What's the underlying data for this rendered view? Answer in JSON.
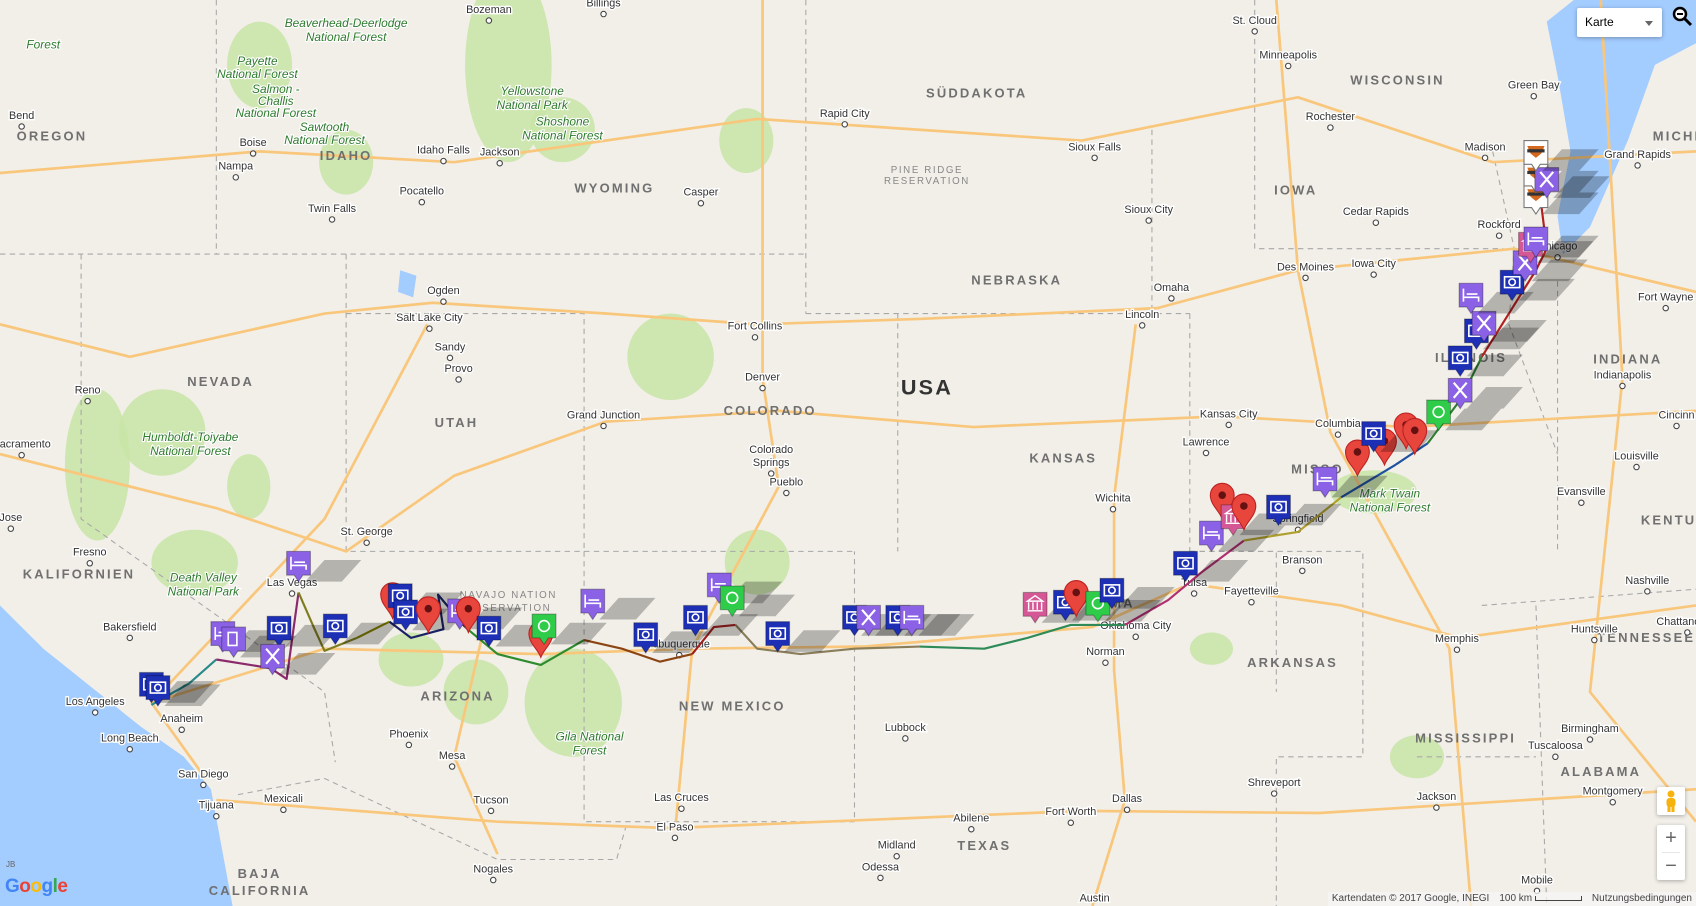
{
  "map_type_control": {
    "selected": "Karte"
  },
  "country_label": "USA",
  "state_labels": [
    "OREGON",
    "IDAHO",
    "WYOMING",
    "SÜDDAKOTA",
    "NEBRASKA",
    "NEVADA",
    "UTAH",
    "COLORADO",
    "KANSAS",
    "IOWA",
    "WISCONSIN",
    "ILLINOIS",
    "INDIANA",
    "MICHI",
    "MISSO",
    "KALIFORNIEN",
    "ARIZONA",
    "NEW MEXICO",
    "TEXAS",
    "ARKANSAS",
    "MISSISSIPPI",
    "TENNESSEE",
    "ALABAMA",
    "KENTUC",
    "BAJA",
    "CALIFORNIA",
    "OMA"
  ],
  "city_labels": [
    "Bozeman",
    "Billings",
    "St. Cloud",
    "Minneapolis",
    "Green Bay",
    "Bend",
    "Boise",
    "Nampa",
    "Idaho Falls",
    "Jackson",
    "Pocatello",
    "Twin Falls",
    "Rapid City",
    "Casper",
    "Sioux Falls",
    "Rochester",
    "Madison",
    "Grand Rapids",
    "Rockford",
    "Sioux City",
    "Cedar Rapids",
    "Des Moines",
    "Iowa City",
    "Chicago",
    "Fort Wayne",
    "Omaha",
    "Lincoln",
    "Ogden",
    "Salt Lake City",
    "Sandy",
    "Provo",
    "Fort Collins",
    "Denver",
    "Reno",
    "Grand Junction",
    "Colorado",
    "Springs",
    "Pueblo",
    "Kansas City",
    "Lawrence",
    "Columbia",
    "Indianapolis",
    "Cincinn",
    "Louisville",
    "Evansville",
    "Wichita",
    "Springfield",
    "Branson",
    "Fayetteville",
    "Nashville",
    "Tulsa",
    "Norman",
    "Memphis",
    "Huntsville",
    "Chattanooga",
    "Birmingham",
    "Tuscaloosa",
    "Montgomery",
    "Jackson",
    "Shreveport",
    "Lubbock",
    "Fresno",
    "Bakersfield",
    "Los Angeles",
    "Anaheim",
    "Long Beach",
    "San Diego",
    "Tijuana",
    "Mexicali",
    "Phoenix",
    "Mesa",
    "Tucson",
    "Nogales",
    "Las Cruces",
    "El Paso",
    "Abilene",
    "Fort Worth",
    "Dallas",
    "Midland",
    "Odessa",
    "Mobile",
    "St. George",
    "Las Vegas",
    "Albuquerque",
    "Oklahoma City",
    "Sacramento",
    "Jose",
    "Austin"
  ],
  "park_labels": [
    "Forest",
    "Beaverhead-Deerlodge",
    "National Forest",
    "Payette",
    "National Forest",
    "Salmon -",
    "Challis",
    "National Forest",
    "Sawtooth",
    "National Forest",
    "Yellowstone",
    "National Park",
    "Shoshone",
    "National Forest",
    "Humboldt-Toiyabe",
    "National Forest",
    "Death Valley",
    "National Park",
    "Gila National",
    "Forest",
    "Mark Twain",
    "National Forest"
  ],
  "reservation_labels": [
    "PINE RIDGE",
    "RESERVATION",
    "NAVAJO NATION",
    "RESERVATION"
  ],
  "markers": [
    "camera",
    "camera",
    "bed",
    "bed",
    "beer",
    "camera",
    "fork",
    "camera",
    "red-pin",
    "camera",
    "camera",
    "red-pin",
    "bed",
    "red-pin",
    "camera",
    "camera",
    "red-pin",
    "green",
    "bed",
    "bed",
    "camera",
    "green",
    "camera",
    "camera",
    "fork",
    "camera",
    "bed",
    "museum",
    "camera",
    "red-pin",
    "green",
    "camera",
    "camera",
    "bed",
    "red-pin",
    "museum",
    "red-pin",
    "camera",
    "bed",
    "red-pin",
    "red-pin",
    "camera",
    "red-pin",
    "red-pin",
    "green",
    "fork",
    "camera",
    "camera",
    "fork",
    "bed",
    "camera",
    "fork",
    "museum",
    "bed",
    "harley",
    "harley",
    "fork",
    "harley"
  ],
  "colors": {
    "camera": "#1c2fb5",
    "bed": "#8b62e6",
    "fork": "#8b62e6",
    "beer": "#8b62e6",
    "red-pin": "#e8453c",
    "green": "#2fcc4a",
    "museum": "#d45896",
    "harley": "#ffffff",
    "water": "#a3ccff",
    "road": "#f9c77c",
    "park": "#c8e4a6"
  },
  "attribution": {
    "data": "Kartendaten © 2017 Google, INEGI",
    "scale": "100 km",
    "terms": "Nutzungsbedingungen"
  },
  "logo": "Google",
  "logo_tag": "JB",
  "zoom": {
    "in": "+",
    "out": "−"
  }
}
